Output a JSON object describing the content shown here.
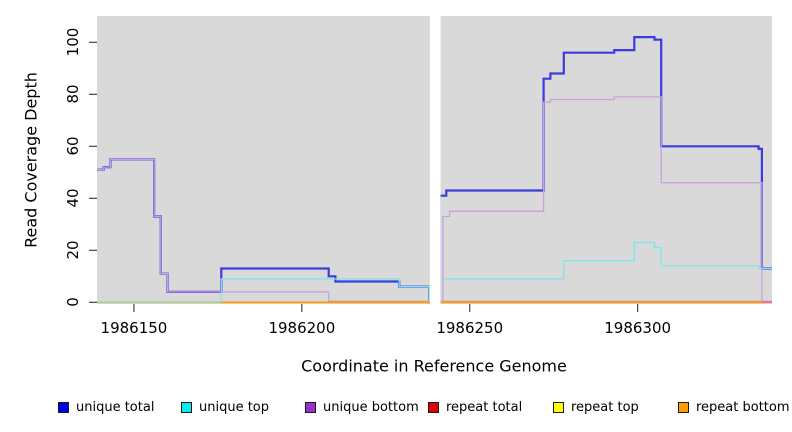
{
  "figure": {
    "background": "#ffffff",
    "plot_background": "#d9d9d9",
    "gap_band_color": "#ffffff"
  },
  "chart_data": {
    "type": "line",
    "subtype": "step-after",
    "title": "",
    "xlabel": "Coordinate in Reference Genome",
    "ylabel": "Read Coverage Depth",
    "xlim": [
      1986139,
      1986340
    ],
    "ylim": [
      0,
      110
    ],
    "x_ticks": [
      1986150,
      1986200,
      1986250,
      1986300
    ],
    "y_ticks": [
      0,
      20,
      40,
      60,
      80,
      100
    ],
    "grid": false,
    "legend_position": "bottom",
    "gap_region": {
      "x0": 1986238.1,
      "x1": 1986241.3
    },
    "series": [
      {
        "name": "unique-total",
        "label": "unique total",
        "legend_color": "#0000ee",
        "line_color": "#3b3bdf",
        "line_width": 2.2,
        "points": [
          [
            1986139,
            51
          ],
          [
            1986141,
            52
          ],
          [
            1986143,
            55
          ],
          [
            1986156,
            33
          ],
          [
            1986158,
            11
          ],
          [
            1986160,
            4
          ],
          [
            1986176,
            13
          ],
          [
            1986208,
            10
          ],
          [
            1986210,
            8
          ],
          [
            1986229,
            6
          ],
          [
            1986238,
            0
          ],
          [
            1986241,
            41
          ],
          [
            1986243,
            43
          ],
          [
            1986272,
            86
          ],
          [
            1986274,
            88
          ],
          [
            1986278,
            96
          ],
          [
            1986293,
            97
          ],
          [
            1986299,
            102
          ],
          [
            1986305,
            101
          ],
          [
            1986307,
            60
          ],
          [
            1986336,
            59
          ],
          [
            1986337,
            13
          ],
          [
            1986340,
            13
          ]
        ]
      },
      {
        "name": "unique-top",
        "label": "unique top",
        "legend_color": "#00eeee",
        "line_color": "#7ce6e6",
        "line_width": 1.3,
        "points": [
          [
            1986139,
            0
          ],
          [
            1986176,
            9
          ],
          [
            1986229,
            6
          ],
          [
            1986238,
            0
          ],
          [
            1986242,
            9
          ],
          [
            1986278,
            16
          ],
          [
            1986299,
            23
          ],
          [
            1986305,
            21
          ],
          [
            1986307,
            14
          ],
          [
            1986336,
            13
          ],
          [
            1986340,
            13
          ]
        ]
      },
      {
        "name": "unique-bottom",
        "label": "unique bottom",
        "legend_color": "#9b30d0",
        "line_color": "#c9a3dd",
        "line_width": 1.3,
        "points": [
          [
            1986139,
            51
          ],
          [
            1986141,
            52
          ],
          [
            1986143,
            55
          ],
          [
            1986156,
            33
          ],
          [
            1986158,
            11
          ],
          [
            1986160,
            4
          ],
          [
            1986208,
            0
          ],
          [
            1986238,
            0
          ],
          [
            1986242,
            33
          ],
          [
            1986244,
            35
          ],
          [
            1986272,
            77
          ],
          [
            1986274,
            78
          ],
          [
            1986293,
            79
          ],
          [
            1986307,
            46
          ],
          [
            1986337,
            0
          ],
          [
            1986340,
            0
          ]
        ]
      },
      {
        "name": "repeat-total",
        "label": "repeat total",
        "legend_color": "#dd0000",
        "line_color": "#e78fa8",
        "line_width": 1.1,
        "points": [
          [
            1986139,
            0
          ],
          [
            1986340,
            0
          ]
        ]
      },
      {
        "name": "repeat-top",
        "label": "repeat top",
        "legend_color": "#ffff00",
        "line_color": "#eeee00",
        "line_width": 1.0,
        "points": [
          [
            1986139,
            0
          ],
          [
            1986340,
            0
          ]
        ]
      },
      {
        "name": "repeat-bottom",
        "label": "repeat bottom",
        "legend_color": "#ff9d00",
        "line_color": "#ff9d00",
        "line_width": 1.6,
        "points": [
          [
            1986139,
            0
          ],
          [
            1986340,
            0
          ]
        ]
      }
    ],
    "baseline_render_segments": [
      {
        "name": "baseline-green-left",
        "color": "#9cd6a4",
        "width": 1.3,
        "x0": 1986139,
        "x1": 1986176,
        "dy": 0
      },
      {
        "name": "baseline-pink-fringe",
        "color": "#e78fa8",
        "width": 1.1,
        "x0": 1986208,
        "x1": 1986340,
        "dy": -1.1
      },
      {
        "name": "baseline-orange",
        "color": "#ff9d00",
        "width": 1.6,
        "x0": 1986176,
        "x1": 1986337,
        "dy": 0
      },
      {
        "name": "baseline-magenta-stub",
        "color": "#e860b8",
        "width": 1.3,
        "x0": 1986337,
        "x1": 1986340,
        "dy": 0
      }
    ]
  },
  "axes": {
    "x_title": "Coordinate in Reference Genome",
    "y_title": "Read Coverage Depth",
    "x_tick_labels": [
      "1986150",
      "1986200",
      "1986250",
      "1986300"
    ],
    "y_tick_labels": [
      "0",
      "20",
      "40",
      "60",
      "80",
      "100"
    ]
  },
  "legend": {
    "items": [
      {
        "label": "unique total",
        "color": "#0000ee"
      },
      {
        "label": "unique top",
        "color": "#00eeee"
      },
      {
        "label": "unique bottom",
        "color": "#9b30d0"
      },
      {
        "label": "repeat total",
        "color": "#dd0000"
      },
      {
        "label": "repeat top",
        "color": "#ffff00"
      },
      {
        "label": "repeat bottom",
        "color": "#ff9d00"
      }
    ]
  }
}
